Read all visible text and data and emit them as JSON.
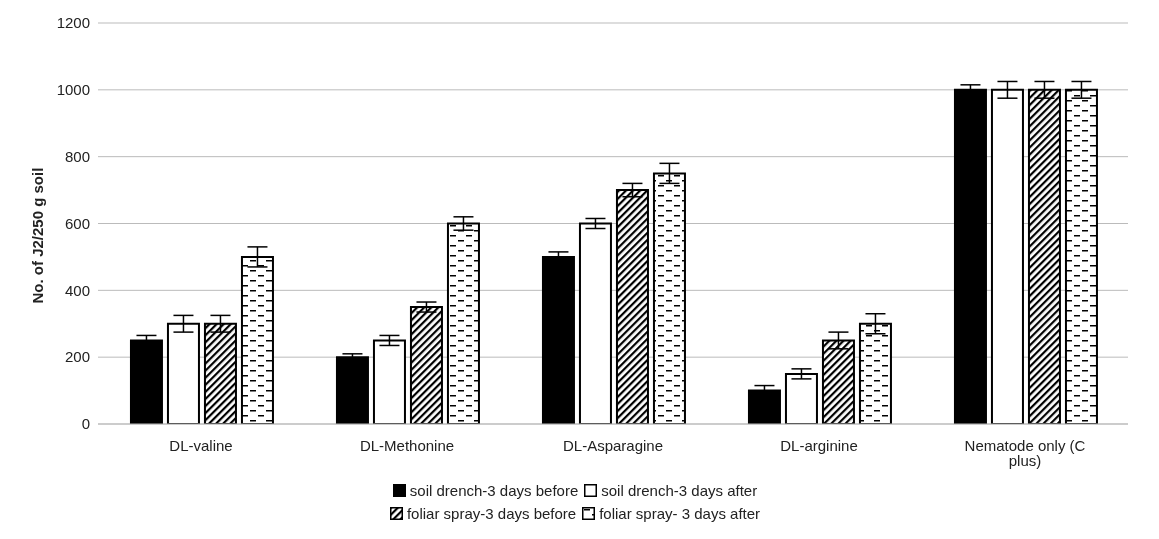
{
  "chart_data": {
    "type": "bar",
    "ylabel": "No. of J2/250 g soil",
    "categories": [
      "DL-valine",
      "DL-Methonine",
      "DL-Asparagine",
      "DL-arginine",
      "Nematode only (C plus)"
    ],
    "series": [
      {
        "name": "soil drench-3 days before",
        "color": "#000000",
        "values": [
          250,
          200,
          500,
          100,
          1000
        ],
        "errors": [
          15,
          10,
          15,
          15,
          15
        ]
      },
      {
        "name": "soil drench-3 days after",
        "color": "#ffffff",
        "values": [
          300,
          250,
          600,
          150,
          1000
        ],
        "errors": [
          25,
          15,
          15,
          15,
          25
        ]
      },
      {
        "name": "foliar spray-3 days before",
        "color": "#000000",
        "values": [
          300,
          350,
          700,
          250,
          1000
        ],
        "errors": [
          25,
          15,
          20,
          25,
          25
        ]
      },
      {
        "name": "foliar spray- 3 days after",
        "color": "#000000",
        "values": [
          500,
          600,
          750,
          300,
          1000
        ],
        "errors": [
          30,
          20,
          30,
          30,
          25
        ]
      }
    ],
    "ylim": [
      0,
      1200
    ],
    "yticks": [
      0,
      200,
      400,
      600,
      800,
      1000,
      1200
    ],
    "grid": "y",
    "legend": "bottom"
  }
}
